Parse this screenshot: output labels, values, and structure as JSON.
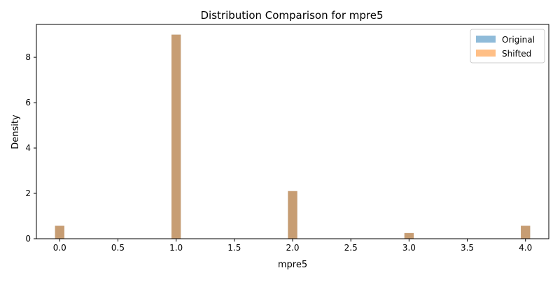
{
  "chart_data": {
    "type": "bar",
    "title": "Distribution Comparison for mpre5",
    "xlabel": "mpre5",
    "ylabel": "Density",
    "xlim": [
      -0.2,
      4.2
    ],
    "ylim": [
      0,
      9.45
    ],
    "x_ticks": [
      0.0,
      0.5,
      1.0,
      1.5,
      2.0,
      2.5,
      3.0,
      3.5,
      4.0
    ],
    "x_tick_labels": [
      "0.0",
      "0.5",
      "1.0",
      "1.5",
      "2.0",
      "2.5",
      "3.0",
      "3.5",
      "4.0"
    ],
    "y_ticks": [
      0,
      2,
      4,
      6,
      8
    ],
    "y_tick_labels": [
      "0",
      "2",
      "4",
      "6",
      "8"
    ],
    "bin_width": 0.08,
    "grid": false,
    "legend_position": "top-right",
    "series": [
      {
        "name": "Original",
        "color": "#1f77b4",
        "opacity": 0.5,
        "x": [
          0.0,
          1.0,
          2.0,
          3.0,
          4.0
        ],
        "values": [
          0.57,
          9.0,
          2.1,
          0.25,
          0.57
        ]
      },
      {
        "name": "Shifted",
        "color": "#ff7f0e",
        "opacity": 0.5,
        "x": [
          0.0,
          1.0,
          2.0,
          3.0,
          4.0
        ],
        "values": [
          0.57,
          9.0,
          2.1,
          0.25,
          0.57
        ]
      }
    ]
  }
}
